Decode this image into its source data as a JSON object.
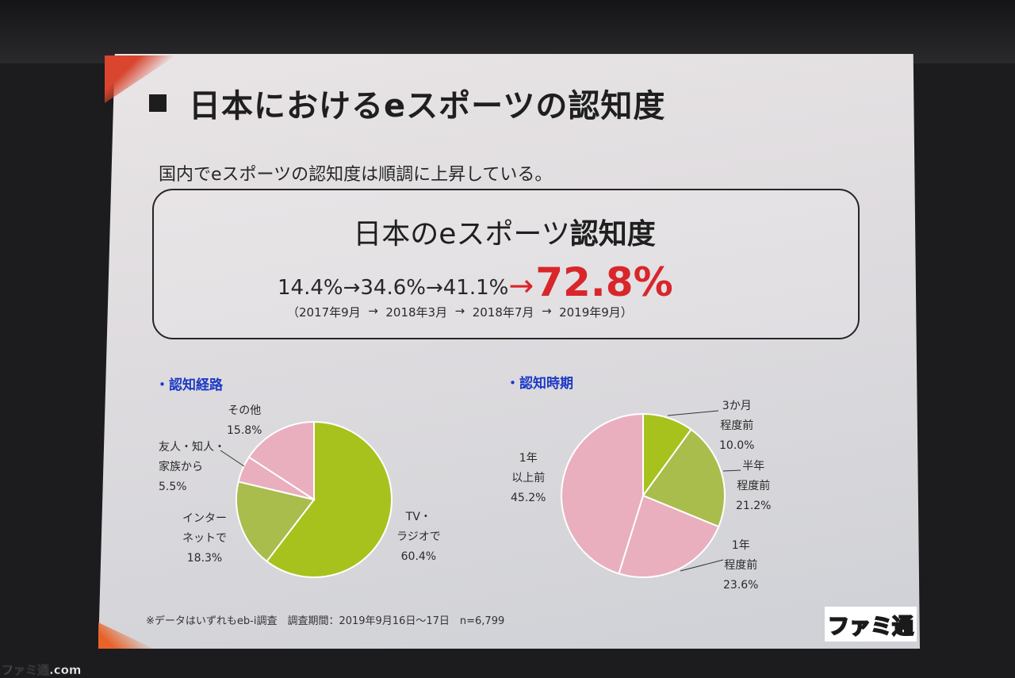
{
  "slide": {
    "title": "日本におけるeスポーツの認知度",
    "subtitle": "国内でeスポーツの認知度は順調に上昇している。",
    "box_heading_prefix": "日本のeスポーツ",
    "box_heading_bold": "認知度",
    "sequence_text": "14.4%→34.6%→41.1%",
    "sequence_arrow": "→",
    "sequence_big": "72.8%",
    "dates": [
      "（2017年9月",
      "  →  ",
      "2018年3月",
      "  →  ",
      "2018年7月",
      "  →  ",
      "2019年9月）"
    ],
    "footnote": "※データはいずれもeb-i調査　調査期間：2019年9月16日～17日　n=6,799",
    "logo": "ファミ通",
    "watermark": "ファミ通.com"
  },
  "colors": {
    "accent_red": "#d8262b",
    "section_blue": "#1d39c5",
    "olive": "#a7c21c",
    "olive_light": "#a8bd4c",
    "pink": "#e9afbf"
  },
  "chart_data": [
    {
      "type": "pie",
      "title": "・認知経路",
      "slices": [
        {
          "label_lines": [
            "TV・",
            "ラジオで",
            "60.4%"
          ],
          "value": 60.4,
          "color": "#a7c21c"
        },
        {
          "label_lines": [
            "インター",
            "ネットで",
            "18.3%"
          ],
          "value": 18.3,
          "color": "#a8bd4c"
        },
        {
          "label_lines": [
            "友人・知人・",
            "家族から",
            "5.5%"
          ],
          "value": 5.5,
          "color": "#e9afbf"
        },
        {
          "label_lines": [
            "その他",
            "15.8%"
          ],
          "value": 15.8,
          "color": "#e9afbf"
        }
      ]
    },
    {
      "type": "pie",
      "title": "・認知時期",
      "slices": [
        {
          "label_lines": [
            "3か月",
            "程度前",
            "10.0%"
          ],
          "value": 10.0,
          "color": "#a7c21c"
        },
        {
          "label_lines": [
            "半年",
            "程度前",
            "21.2%"
          ],
          "value": 21.2,
          "color": "#a8bd4c"
        },
        {
          "label_lines": [
            "1年",
            "程度前",
            "23.6%"
          ],
          "value": 23.6,
          "color": "#e9afbf"
        },
        {
          "label_lines": [
            "1年",
            "以上前",
            "45.2%"
          ],
          "value": 45.2,
          "color": "#e9afbf"
        }
      ]
    }
  ]
}
